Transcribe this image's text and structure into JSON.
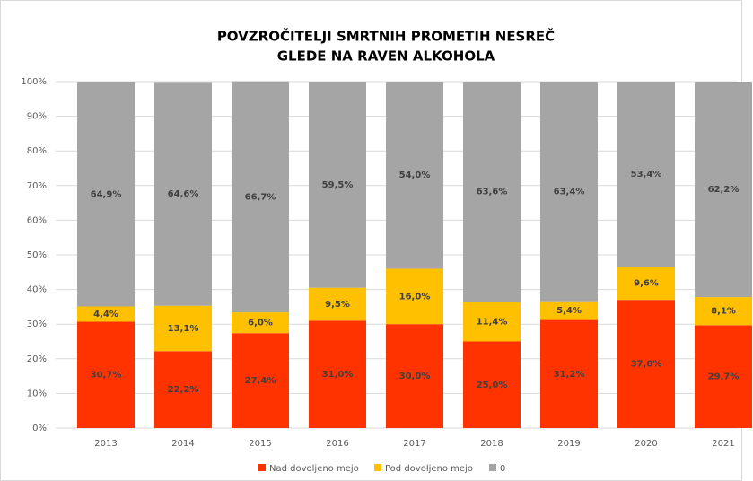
{
  "chart_data": {
    "type": "stacked_bar",
    "title": [
      "POVZROČITELJI SMRTNIH PROMETIH NESREČ",
      "GLEDE NA RAVEN ALKOHOLA"
    ],
    "categories": [
      "2013",
      "2014",
      "2015",
      "2016",
      "2017",
      "2018",
      "2019",
      "2020",
      "2021"
    ],
    "series": [
      {
        "name": "Nad dovoljeno mejo",
        "color": "#ff3300",
        "values": [
          30.7,
          22.2,
          27.4,
          31.0,
          30.0,
          25.0,
          31.2,
          37.0,
          29.7
        ],
        "value_labels": [
          "30,7%",
          "22,2%",
          "27,4%",
          "31,0%",
          "30,0%",
          "25,0%",
          "31,2%",
          "37,0%",
          "29,7%"
        ]
      },
      {
        "name": "Pod dovoljeno mejo",
        "color": "#ffc000",
        "values": [
          4.4,
          13.1,
          6.0,
          9.5,
          16.0,
          11.4,
          5.4,
          9.6,
          8.1
        ],
        "value_labels": [
          "4,4%",
          "13,1%",
          "6,0%",
          "9,5%",
          "16,0%",
          "11,4%",
          "5,4%",
          "9,6%",
          "8,1%"
        ]
      },
      {
        "name": "0",
        "color": "#a5a5a5",
        "values": [
          64.9,
          64.6,
          66.7,
          59.5,
          54.0,
          63.6,
          63.4,
          53.4,
          62.2
        ],
        "value_labels": [
          "64,9%",
          "64,6%",
          "66,7%",
          "59,5%",
          "54,0%",
          "63,6%",
          "63,4%",
          "53,4%",
          "62,2%"
        ]
      }
    ],
    "ylim": [
      0,
      100
    ],
    "yticks": [
      {
        "value": 0,
        "label": "0%"
      },
      {
        "value": 10,
        "label": "10%"
      },
      {
        "value": 20,
        "label": "20%"
      },
      {
        "value": 30,
        "label": "30%"
      },
      {
        "value": 40,
        "label": "40%"
      },
      {
        "value": 50,
        "label": "50%"
      },
      {
        "value": 60,
        "label": "60%"
      },
      {
        "value": 70,
        "label": "70%"
      },
      {
        "value": 80,
        "label": "80%"
      },
      {
        "value": 90,
        "label": "90%"
      },
      {
        "value": 100,
        "label": "100%"
      }
    ],
    "grid": true,
    "legend": "bottom"
  }
}
